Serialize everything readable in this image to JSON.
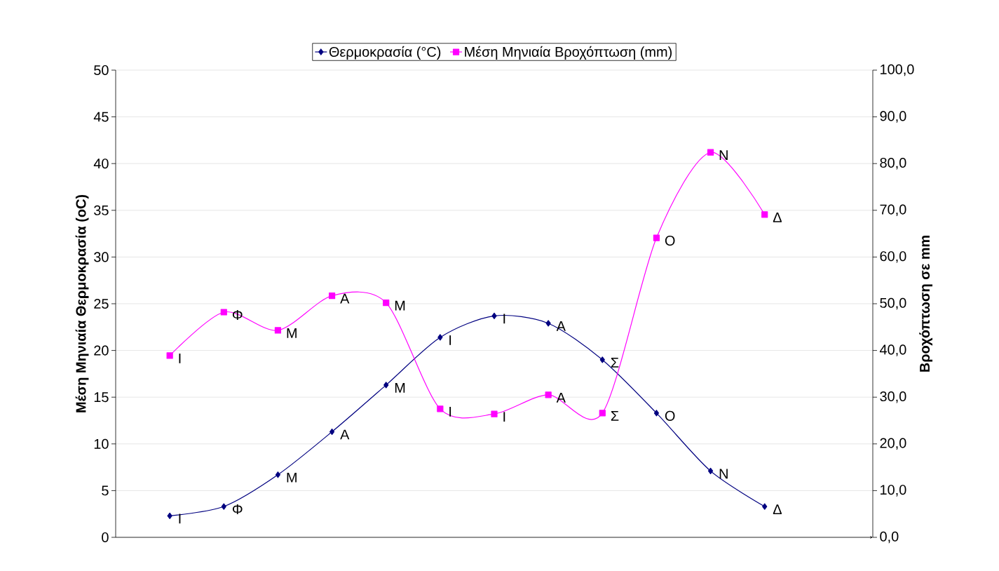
{
  "chart_data": {
    "type": "line",
    "categories": [
      null,
      null,
      null,
      null,
      null,
      null,
      null,
      null,
      null,
      null,
      null,
      null
    ],
    "ylabel": "Μέση Μηνιαία Θερμοκρασία (oC)",
    "y2label": "Βροχόπτωση σε mm",
    "ylim": [
      0,
      50
    ],
    "yticks": [
      0,
      5,
      10,
      15,
      20,
      25,
      30,
      35,
      40,
      45,
      50
    ],
    "y2lim": [
      0,
      100
    ],
    "y2ticks": [
      {
        "value": 0,
        "label": "0,0"
      },
      {
        "value": 10,
        "label": "10,0"
      },
      {
        "value": 20,
        "label": "20,0"
      },
      {
        "value": 30,
        "label": "30,0"
      },
      {
        "value": 40,
        "label": "40,0"
      },
      {
        "value": 50,
        "label": "50,0"
      },
      {
        "value": 60,
        "label": "60,0"
      },
      {
        "value": 70,
        "label": "70,0"
      },
      {
        "value": 80,
        "label": "80,0"
      },
      {
        "value": 90,
        "label": "90,0"
      },
      {
        "value": 100,
        "label": "100,0"
      }
    ],
    "grid": "y",
    "legend": "top",
    "series": [
      {
        "name": "Θερμοκρασία (°C)",
        "color": "#000080",
        "marker": "diamond",
        "values": [
          2.3,
          3.3,
          6.7,
          11.3,
          16.3,
          21.4,
          23.7,
          22.9,
          19.0,
          13.3,
          7.1,
          3.3
        ],
        "value_labels": [
          "Ι",
          "Φ",
          "Μ",
          "Α",
          "Μ",
          "Ι",
          "Ι",
          "Α",
          "Σ",
          "Ο",
          "Ν",
          "Δ"
        ]
      },
      {
        "name": "Μέση Μηνιαία Βροχόπτωση (mm)",
        "color": "#ff00ff",
        "marker": "square",
        "axis": "y2",
        "values": [
          38.9,
          48.2,
          44.3,
          51.7,
          50.2,
          27.5,
          26.4,
          30.5,
          26.6,
          64.1,
          82.4,
          69.1
        ],
        "value_labels": [
          "Ι",
          "Φ",
          "Μ",
          "Α",
          "Μ",
          "Ι",
          "Ι",
          "Α",
          "Σ",
          "Ο",
          "Ν",
          "Δ"
        ]
      }
    ]
  }
}
